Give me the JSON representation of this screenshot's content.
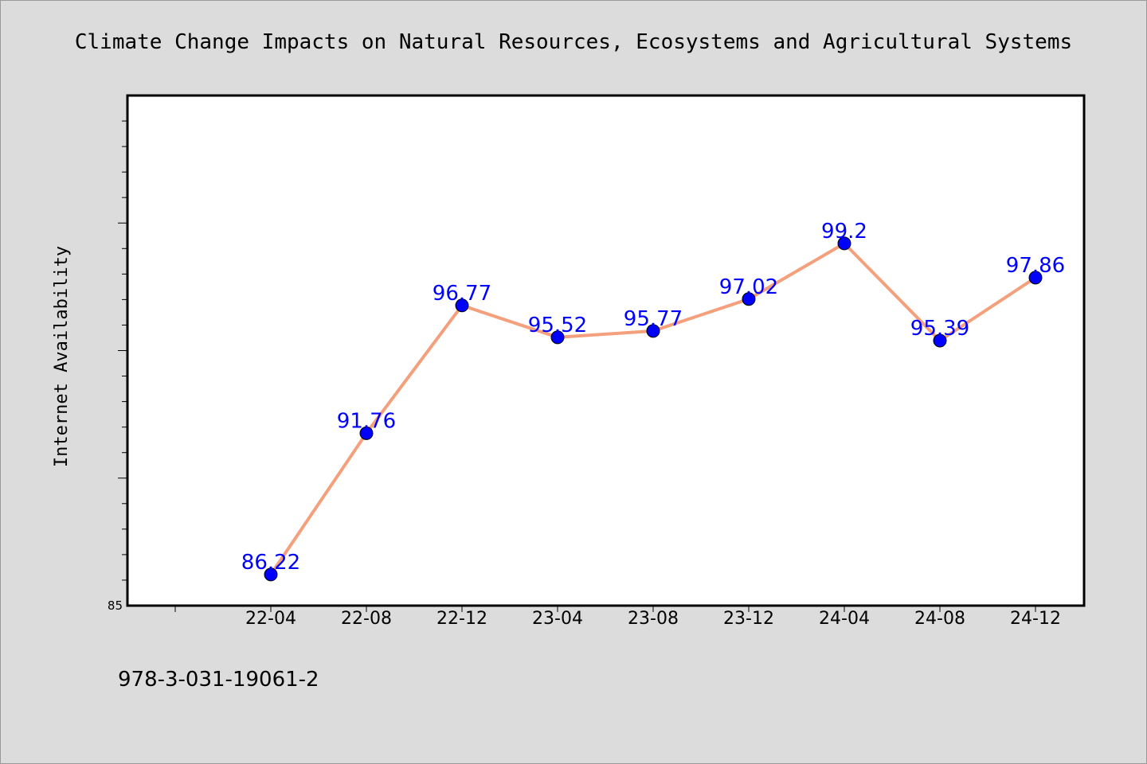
{
  "colors": {
    "background": "#dcdcdc",
    "plot_background": "#ffffff",
    "line": "#f4a07c",
    "marker": "#0000ff",
    "data_label": "#0000ff"
  },
  "footer_text": "978-3-031-19061-2",
  "chart_data": {
    "type": "line",
    "title": "Climate Change Impacts on Natural Resources, Ecosystems and Agricultural Systems",
    "xlabel": "",
    "ylabel": "Internet Availability",
    "categories": [
      "22-04",
      "22-08",
      "22-12",
      "23-04",
      "23-08",
      "23-12",
      "24-04",
      "24-08",
      "24-12"
    ],
    "series": [
      {
        "values": [
          86.22,
          91.76,
          96.77,
          95.52,
          95.77,
          97.02,
          99.2,
          95.39,
          97.86
        ]
      }
    ],
    "ylim": [
      85,
      105
    ],
    "y_tick_labels": [
      "85"
    ],
    "grid": false,
    "legend": "none"
  }
}
